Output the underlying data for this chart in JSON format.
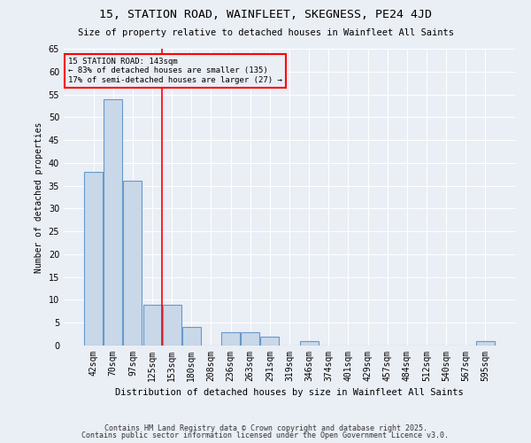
{
  "title": "15, STATION ROAD, WAINFLEET, SKEGNESS, PE24 4JD",
  "subtitle": "Size of property relative to detached houses in Wainfleet All Saints",
  "xlabel": "Distribution of detached houses by size in Wainfleet All Saints",
  "ylabel": "Number of detached properties",
  "categories": [
    "42sqm",
    "70sqm",
    "97sqm",
    "125sqm",
    "153sqm",
    "180sqm",
    "208sqm",
    "236sqm",
    "263sqm",
    "291sqm",
    "319sqm",
    "346sqm",
    "374sqm",
    "401sqm",
    "429sqm",
    "457sqm",
    "484sqm",
    "512sqm",
    "540sqm",
    "567sqm",
    "595sqm"
  ],
  "values": [
    38,
    54,
    36,
    9,
    9,
    4,
    0,
    3,
    3,
    2,
    0,
    1,
    0,
    0,
    0,
    0,
    0,
    0,
    0,
    0,
    1
  ],
  "bar_color": "#c8d8e8",
  "bar_edge_color": "#6699cc",
  "annotation_text": "15 STATION ROAD: 143sqm\n← 83% of detached houses are smaller (135)\n17% of semi-detached houses are larger (27) →",
  "red_line_x": 3.5,
  "ylim": [
    0,
    65
  ],
  "yticks": [
    0,
    5,
    10,
    15,
    20,
    25,
    30,
    35,
    40,
    45,
    50,
    55,
    60,
    65
  ],
  "background_color": "#eaeef5",
  "grid_color": "#ffffff",
  "footer_line1": "Contains HM Land Registry data © Crown copyright and database right 2025.",
  "footer_line2": "Contains public sector information licensed under the Open Government Licence v3.0."
}
